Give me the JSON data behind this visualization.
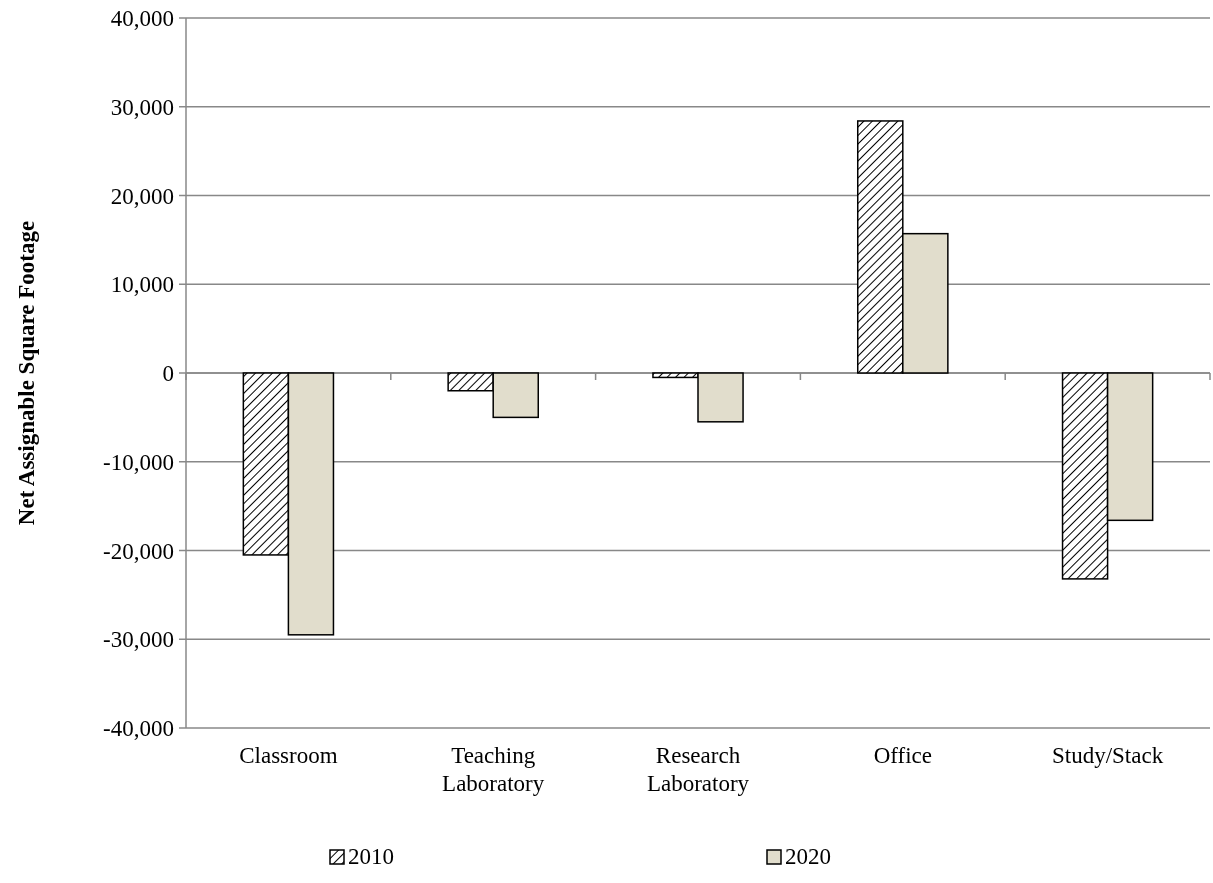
{
  "chart_data": {
    "type": "bar",
    "ylabel": "Net Assignable Square Footage",
    "categories": [
      "Classroom",
      "Teaching Laboratory",
      "Research Laboratory",
      "Office",
      "Study/Stack"
    ],
    "series": [
      {
        "name": "2010",
        "color": "#000000",
        "values": [
          -20500,
          -2000,
          -500,
          28400,
          -23200
        ]
      },
      {
        "name": "2020",
        "color": "#e1ddcc",
        "values": [
          -29500,
          -5000,
          -5500,
          15700,
          -16600
        ]
      }
    ],
    "ylim": [
      -40000,
      40000
    ],
    "yticks": [
      {
        "value": -40000,
        "label": "-40,000"
      },
      {
        "value": -30000,
        "label": "-30,000"
      },
      {
        "value": -20000,
        "label": "-20,000"
      },
      {
        "value": -10000,
        "label": "-10,000"
      },
      0,
      {
        "value": 10000,
        "label": "10,000"
      },
      {
        "value": 20000,
        "label": "20,000"
      },
      {
        "value": 30000,
        "label": "30,000"
      },
      {
        "value": 40000,
        "label": "40,000"
      }
    ],
    "grid": "y",
    "legend": "bottom"
  }
}
